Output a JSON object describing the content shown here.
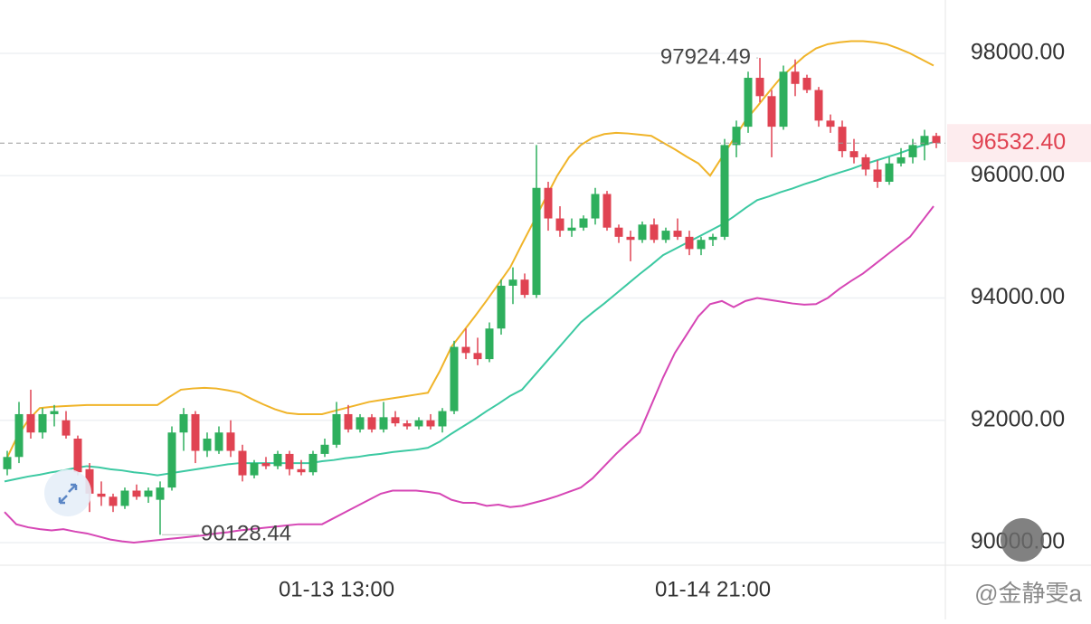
{
  "chart_data": {
    "type": "candlestick",
    "categories": [
      null,
      null,
      null,
      null,
      null,
      null,
      null,
      null,
      null,
      null,
      null,
      null,
      null,
      null,
      null,
      null,
      null,
      null,
      null,
      null,
      null,
      null,
      null,
      null,
      null,
      null,
      null,
      null,
      "01-13 13:00",
      null,
      null,
      null,
      null,
      null,
      null,
      null,
      null,
      null,
      null,
      null,
      null,
      null,
      null,
      null,
      null,
      null,
      null,
      null,
      null,
      null,
      null,
      null,
      null,
      null,
      null,
      null,
      null,
      null,
      null,
      null,
      "01-14 21:00",
      null,
      null,
      null,
      null,
      null,
      null,
      null,
      null,
      null,
      null,
      null,
      null,
      null,
      null,
      null,
      null,
      null,
      null,
      null
    ],
    "open": [
      91200,
      91400,
      92100,
      91800,
      92100,
      92000,
      91700,
      91200,
      90800,
      90750,
      90600,
      90850,
      90750,
      90700,
      90900,
      91800,
      92100,
      91500,
      91500,
      91800,
      91500,
      91100,
      91300,
      91250,
      91450,
      91200,
      91150,
      91450,
      91600,
      92100,
      91850,
      92050,
      91850,
      92050,
      91950,
      91900,
      92000,
      91900,
      92150,
      93200,
      93100,
      93000,
      93500,
      94200,
      94300,
      94050,
      95800,
      95300,
      95100,
      95150,
      95300,
      95700,
      95150,
      95000,
      94950,
      95200,
      94950,
      95100,
      95000,
      94800,
      94950,
      95000,
      96500,
      96800,
      97600,
      97300,
      96800,
      97700,
      97600,
      97400,
      96900,
      96800,
      96400,
      96300,
      96100,
      95900,
      96200,
      96300,
      96500,
      96650
    ],
    "high": [
      91500,
      92300,
      92500,
      92200,
      92250,
      92150,
      91750,
      91300,
      91000,
      90800,
      90900,
      90950,
      90900,
      91000,
      91900,
      92200,
      92150,
      91800,
      91900,
      92000,
      91600,
      91350,
      91400,
      91500,
      91500,
      91350,
      91500,
      91700,
      92300,
      92250,
      92100,
      92100,
      92300,
      92150,
      92000,
      92050,
      92100,
      92200,
      93300,
      93500,
      93350,
      93600,
      94300,
      94500,
      94400,
      96500,
      95900,
      95500,
      95300,
      95350,
      95800,
      95750,
      95200,
      95100,
      95250,
      95300,
      95150,
      95300,
      95100,
      95000,
      95050,
      96600,
      96900,
      97700,
      97924.49,
      97400,
      97800,
      97900,
      97650,
      97450,
      97000,
      96900,
      96600,
      96350,
      96250,
      96300,
      96450,
      96600,
      96750,
      96700
    ],
    "low": [
      91100,
      91300,
      91700,
      91700,
      91900,
      91700,
      91100,
      90500,
      90600,
      90500,
      90550,
      90700,
      90650,
      90128.44,
      90850,
      91500,
      91300,
      91400,
      91450,
      91400,
      91000,
      91050,
      91200,
      91200,
      91100,
      91100,
      91100,
      91400,
      91550,
      91800,
      91800,
      91800,
      91800,
      91900,
      91850,
      91850,
      91850,
      91800,
      92100,
      93000,
      92900,
      92950,
      93400,
      93900,
      94000,
      94000,
      95100,
      95000,
      95000,
      95100,
      95200,
      95100,
      94900,
      94600,
      94900,
      94900,
      94900,
      94950,
      94700,
      94700,
      94850,
      94950,
      96300,
      96700,
      97200,
      96300,
      96750,
      97300,
      97350,
      96800,
      96700,
      96300,
      96200,
      96000,
      95800,
      95850,
      96150,
      96200,
      96250,
      96450
    ],
    "close": [
      91400,
      92100,
      91800,
      92100,
      92150,
      91750,
      91150,
      90800,
      90750,
      90600,
      90850,
      90750,
      90850,
      90900,
      91800,
      92100,
      91500,
      91700,
      91800,
      91500,
      91100,
      91300,
      91250,
      91450,
      91200,
      91150,
      91450,
      91600,
      92100,
      91850,
      92050,
      91850,
      92050,
      91950,
      91900,
      92000,
      91900,
      92150,
      93200,
      93100,
      93000,
      93500,
      94200,
      94300,
      94050,
      95800,
      95300,
      95100,
      95150,
      95300,
      95700,
      95150,
      95000,
      94950,
      95200,
      94950,
      95100,
      95000,
      94800,
      94950,
      95000,
      96500,
      96800,
      97600,
      97300,
      96800,
      97700,
      97500,
      97400,
      96900,
      96800,
      96400,
      96300,
      96100,
      95900,
      96200,
      96300,
      96500,
      96650,
      96532.4
    ],
    "up_color": "#2eaf5d",
    "down_color": "#e04352",
    "lines": [
      {
        "color": "#f0b429",
        "values": [
          91300,
          91700,
          92000,
          92200,
          92220,
          92230,
          92240,
          92250,
          92250,
          92250,
          92250,
          92250,
          92250,
          92250,
          92380,
          92500,
          92520,
          92530,
          92520,
          92490,
          92450,
          92350,
          92260,
          92180,
          92120,
          92100,
          92100,
          92100,
          92150,
          92200,
          92250,
          92300,
          92330,
          92360,
          92390,
          92420,
          92450,
          92800,
          93200,
          93450,
          93700,
          93960,
          94230,
          94500,
          94880,
          95250,
          95630,
          96000,
          96300,
          96500,
          96620,
          96680,
          96700,
          96690,
          96670,
          96650,
          96540,
          96430,
          96310,
          96200,
          96000,
          96300,
          96600,
          96900,
          97130,
          97370,
          97600,
          97780,
          97950,
          98080,
          98150,
          98180,
          98200,
          98200,
          98180,
          98150,
          98080,
          98000,
          97900,
          97800
        ]
      },
      {
        "color": "#3cc9a2",
        "values": [
          91000,
          91040,
          91080,
          91110,
          91150,
          91180,
          91220,
          91250,
          91230,
          91200,
          91180,
          91150,
          91130,
          91100,
          91130,
          91160,
          91190,
          91220,
          91250,
          91280,
          91300,
          91300,
          91300,
          91300,
          91300,
          91300,
          91300,
          91330,
          91350,
          91380,
          91400,
          91430,
          91450,
          91480,
          91500,
          91520,
          91550,
          91650,
          91780,
          91900,
          92020,
          92150,
          92270,
          92400,
          92500,
          92720,
          92940,
          93160,
          93380,
          93600,
          93760,
          93910,
          94070,
          94230,
          94390,
          94540,
          94700,
          94800,
          94900,
          95000,
          95100,
          95200,
          95330,
          95470,
          95600,
          95660,
          95730,
          95790,
          95860,
          95920,
          95990,
          96050,
          96110,
          96180,
          96240,
          96300,
          96360,
          96430,
          96490,
          96550
        ]
      },
      {
        "color": "#d646b5",
        "values": [
          90500,
          90300,
          90250,
          90220,
          90200,
          90220,
          90180,
          90150,
          90100,
          90050,
          90020,
          90000,
          90020,
          90040,
          90060,
          90080,
          90100,
          90120,
          90150,
          90170,
          90200,
          90220,
          90240,
          90260,
          90280,
          90300,
          90300,
          90300,
          90400,
          90500,
          90600,
          90700,
          90800,
          90850,
          90850,
          90850,
          90830,
          90800,
          90700,
          90650,
          90650,
          90600,
          90620,
          90580,
          90600,
          90650,
          90700,
          90760,
          90830,
          90900,
          91050,
          91250,
          91450,
          91630,
          91800,
          92250,
          92700,
          93100,
          93400,
          93700,
          93900,
          93950,
          93850,
          93950,
          94000,
          93970,
          93940,
          93910,
          93890,
          93900,
          94000,
          94150,
          94280,
          94400,
          94550,
          94700,
          94850,
          95000,
          95250,
          95500
        ]
      }
    ],
    "ylim": [
      89630,
      98872
    ],
    "yticks": [
      {
        "value": 90000,
        "label": "90000.00"
      },
      {
        "value": 92000,
        "label": "92000.00"
      },
      {
        "value": 94000,
        "label": "94000.00"
      },
      {
        "value": 96000,
        "label": "96000.00"
      },
      {
        "value": 98000,
        "label": "98000.00"
      }
    ],
    "grid": true,
    "high_annotation": {
      "value": 97924.49,
      "label": "97924.49",
      "index": 64
    },
    "low_annotation": {
      "value": 90128.44,
      "label": "90128.44",
      "index": 13
    },
    "last_price": {
      "value": 96532.4,
      "label": "96532.40"
    }
  },
  "watermark": "@金静雯a"
}
